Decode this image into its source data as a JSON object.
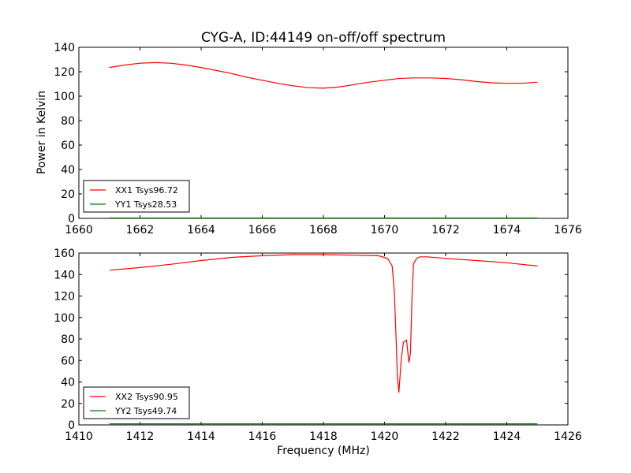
{
  "title": "CYG-A, ID:44149 on-off/off spectrum",
  "ylabel": "Power in Kelvin",
  "xlabel": "Frequency (MHz)",
  "chart_data": [
    {
      "type": "line",
      "title": "CYG-A, ID:44149 on-off/off spectrum",
      "xlabel": "",
      "ylabel": "Power in Kelvin",
      "xlim": [
        1660,
        1676
      ],
      "ylim": [
        0,
        140
      ],
      "xticks": [
        1660,
        1662,
        1664,
        1666,
        1668,
        1670,
        1672,
        1674,
        1676
      ],
      "yticks": [
        0,
        20,
        40,
        60,
        80,
        100,
        120,
        140
      ],
      "legend_position": "lower-left",
      "series": [
        {
          "name": "XX1 Tsys96.72",
          "color": "#ff0000",
          "x": [
            1661,
            1661.5,
            1662,
            1662.5,
            1663,
            1663.5,
            1664,
            1664.5,
            1665,
            1665.5,
            1666,
            1666.5,
            1667,
            1667.5,
            1668,
            1668.5,
            1669,
            1669.5,
            1670,
            1670.5,
            1671,
            1671.5,
            1672,
            1672.5,
            1673,
            1673.5,
            1674,
            1674.5,
            1675
          ],
          "y": [
            123.5,
            125.5,
            127,
            127.5,
            127,
            125.5,
            123.5,
            121,
            118.5,
            115.5,
            113,
            110.5,
            108.5,
            107,
            106.5,
            107.5,
            109.5,
            111.5,
            113,
            114.5,
            115,
            115,
            114.5,
            113.5,
            112,
            111,
            110.5,
            110.5,
            111.5
          ]
        },
        {
          "name": "YY1 Tsys28.53",
          "color": "#008000",
          "x": [
            1661,
            1675
          ],
          "y": [
            0.3,
            0.3
          ]
        }
      ]
    },
    {
      "type": "line",
      "title": "",
      "xlabel": "Frequency (MHz)",
      "ylabel": "",
      "xlim": [
        1410,
        1426
      ],
      "ylim": [
        0,
        160
      ],
      "xticks": [
        1410,
        1412,
        1414,
        1416,
        1418,
        1420,
        1422,
        1424,
        1426
      ],
      "yticks": [
        0,
        20,
        40,
        60,
        80,
        100,
        120,
        140,
        160
      ],
      "legend_position": "lower-left",
      "series": [
        {
          "name": "XX2 Tsys90.95",
          "color": "#ff0000",
          "x": [
            1411,
            1412,
            1413,
            1414,
            1415,
            1416,
            1417,
            1418,
            1419,
            1419.8,
            1420.1,
            1420.25,
            1420.32,
            1420.38,
            1420.42,
            1420.47,
            1420.55,
            1420.62,
            1420.72,
            1420.8,
            1420.85,
            1420.9,
            1420.95,
            1421.05,
            1421.15,
            1421.4,
            1422,
            1423,
            1424,
            1425
          ],
          "y": [
            144,
            146.5,
            149.5,
            153,
            156,
            157.5,
            158.5,
            158.5,
            158,
            157.5,
            155,
            148,
            125,
            80,
            45,
            30,
            62,
            77,
            79,
            58,
            67,
            120,
            150,
            155,
            156.5,
            156.5,
            155,
            153,
            151,
            148
          ]
        },
        {
          "name": "YY2 Tsys49.74",
          "color": "#008000",
          "x": [
            1411,
            1425
          ],
          "y": [
            1,
            1
          ]
        }
      ]
    }
  ]
}
